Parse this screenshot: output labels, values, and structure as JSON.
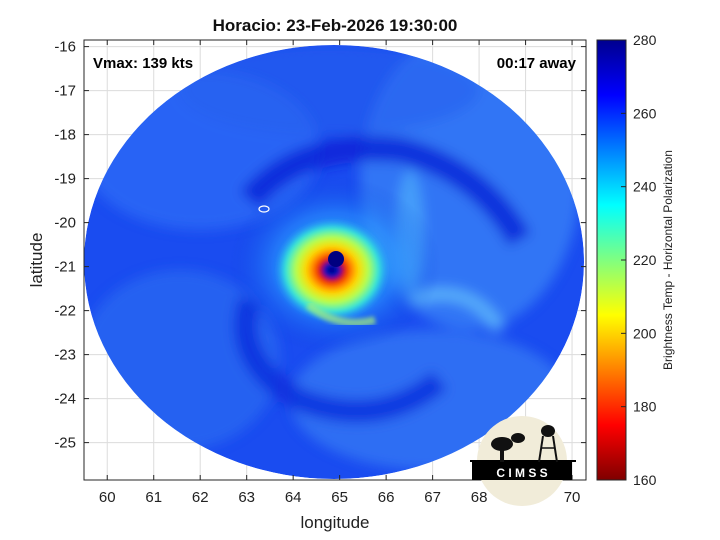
{
  "chart_data": {
    "type": "heatmap",
    "title": "Horacio: 23-Feb-2026 19:30:00",
    "xlabel": "longitude",
    "ylabel": "latitude",
    "xlim": [
      59.5,
      70.3
    ],
    "ylim": [
      -25.85,
      -15.85
    ],
    "x_ticks": [
      60,
      61,
      62,
      63,
      64,
      65,
      66,
      67,
      68,
      69,
      70
    ],
    "y_ticks": [
      -16,
      -17,
      -18,
      -19,
      -20,
      -21,
      -22,
      -23,
      -24,
      -25
    ],
    "grid": true,
    "annotations": {
      "vmax": "Vmax: 139 kts",
      "time_away": "00:17 away"
    },
    "storm_center": {
      "lon": 64.95,
      "lat": -20.85
    },
    "colorbar": {
      "label": "Brightness Temp - Horizontal Polarization",
      "range": [
        160,
        280
      ],
      "ticks": [
        160,
        180,
        200,
        220,
        240,
        260,
        280
      ]
    },
    "logo_text": "C I M S S"
  }
}
